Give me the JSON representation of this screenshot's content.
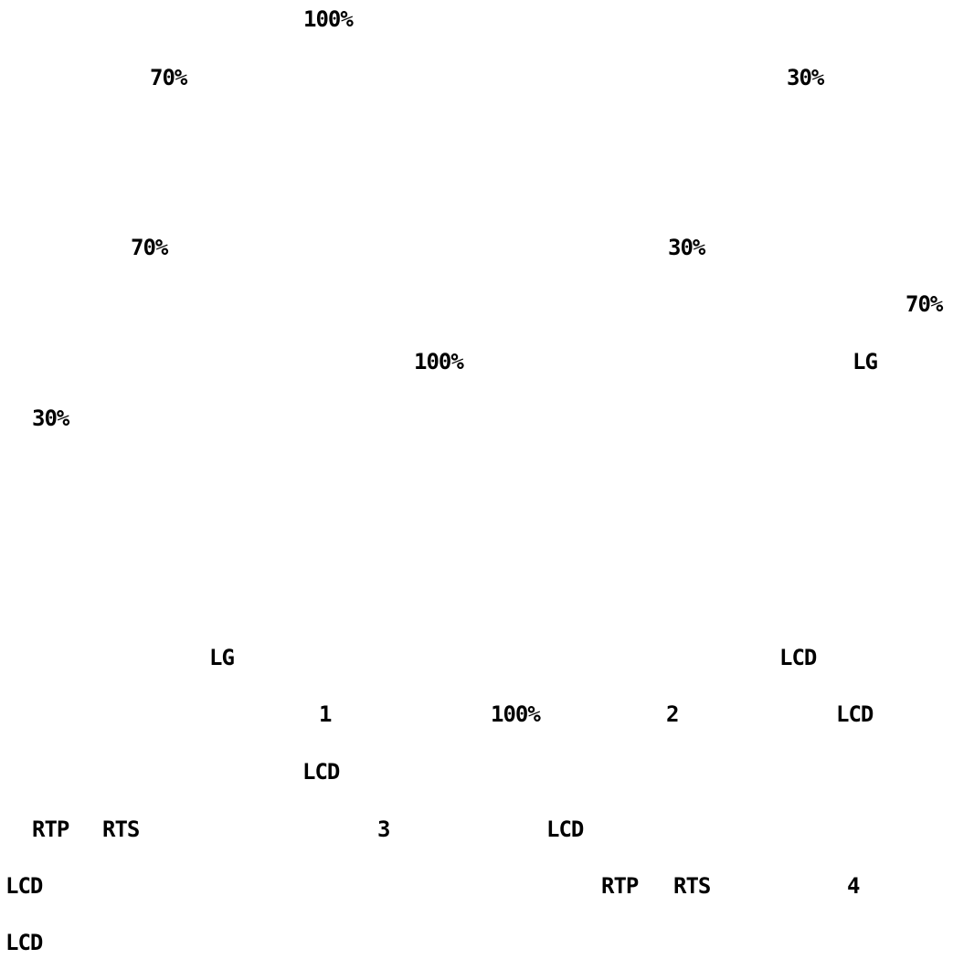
{
  "document": {
    "fragments": [
      "100%",
      "70%",
      "30%",
      "70%",
      "30%",
      "70%",
      "100%",
      "LG",
      "30%",
      "LG",
      "LCD",
      "1",
      "100%",
      "2",
      "LCD",
      "LCD",
      "RTP",
      "RTS",
      "3",
      "LCD",
      "LCD",
      "RTP",
      "RTS",
      "4",
      "LCD"
    ]
  }
}
